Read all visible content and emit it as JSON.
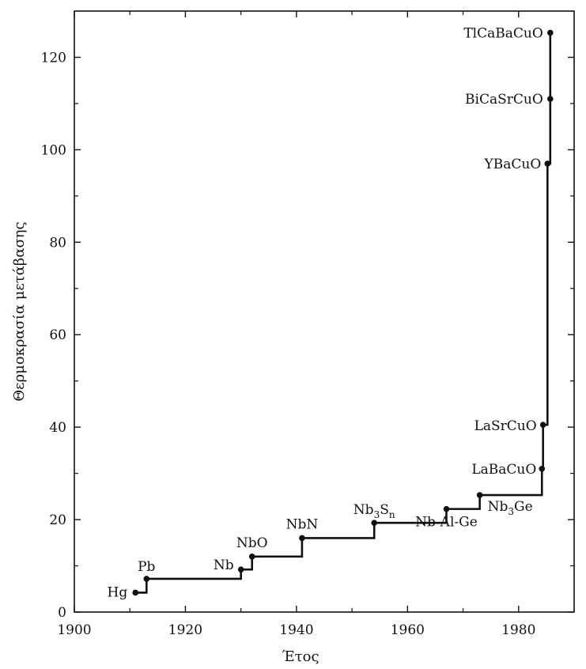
{
  "chart_data": {
    "type": "line",
    "xlabel": "Έτος",
    "ylabel": "Θερμοκρασία μετάβασης",
    "xlim": [
      1900,
      1990
    ],
    "ylim": [
      0,
      130
    ],
    "x_ticks": [
      1900,
      1920,
      1940,
      1960,
      1980
    ],
    "y_ticks": [
      0,
      20,
      40,
      60,
      80,
      100,
      120
    ],
    "grid": false,
    "legend": "none",
    "series": [
      {
        "step": "post",
        "points": [
          {
            "label": "Hg",
            "label_sub": "",
            "label_tail": "",
            "label_tail_sub": "",
            "x": 1911,
            "y": 4.2
          },
          {
            "label": "Pb",
            "label_sub": "",
            "label_tail": "",
            "label_tail_sub": "",
            "x": 1913,
            "y": 7.2
          },
          {
            "label": "Nb",
            "label_sub": "",
            "label_tail": "",
            "label_tail_sub": "",
            "x": 1930,
            "y": 9.2
          },
          {
            "label": "NbO",
            "label_sub": "",
            "label_tail": "",
            "label_tail_sub": "",
            "x": 1932,
            "y": 12.0
          },
          {
            "label": "NbN",
            "label_sub": "",
            "label_tail": "",
            "label_tail_sub": "",
            "x": 1941,
            "y": 16.0
          },
          {
            "label": "Nb",
            "label_sub": "3",
            "label_tail": "S",
            "label_tail_sub": "n",
            "x": 1954,
            "y": 19.3
          },
          {
            "label": "Nb-Al-Ge",
            "label_sub": "",
            "label_tail": "",
            "label_tail_sub": "",
            "x": 1967,
            "y": 22.3
          },
          {
            "label": "Nb",
            "label_sub": "3",
            "label_tail": "Ge",
            "label_tail_sub": "",
            "x": 1973,
            "y": 25.3
          },
          {
            "label": "LaBaCuO",
            "label_sub": "",
            "label_tail": "",
            "label_tail_sub": "",
            "x": 1984.2,
            "y": 31.0
          },
          {
            "label": "LaSrCuO",
            "label_sub": "",
            "label_tail": "",
            "label_tail_sub": "",
            "x": 1984.4,
            "y": 40.5
          },
          {
            "label": "YBaCuO",
            "label_sub": "",
            "label_tail": "",
            "label_tail_sub": "",
            "x": 1985.2,
            "y": 97.0
          },
          {
            "label": "BiCaSrCuO",
            "label_sub": "",
            "label_tail": "",
            "label_tail_sub": "",
            "x": 1985.7,
            "y": 111.0
          },
          {
            "label": "TlCaBaCuO",
            "label_sub": "",
            "label_tail": "",
            "label_tail_sub": "",
            "x": 1985.7,
            "y": 125.3
          }
        ]
      }
    ]
  }
}
